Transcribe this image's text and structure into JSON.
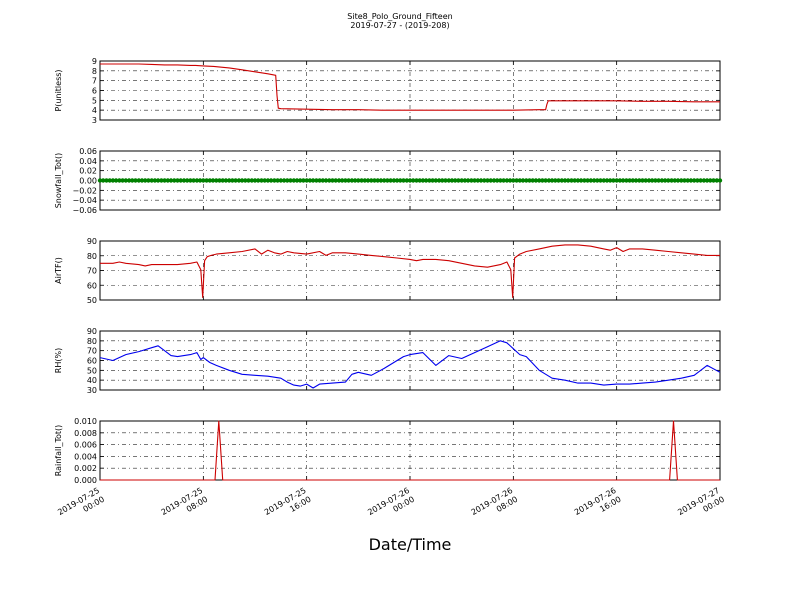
{
  "figure": {
    "title": "Site8_Polo_Ground_Fifteen",
    "subtitle": "2019-07-27 - (2019-208)",
    "xlabel": "Date/Time"
  },
  "chart_data": [
    {
      "type": "line",
      "ylabel": "P(unitless)",
      "ylim": [
        3,
        9
      ],
      "yticks": [
        "3",
        "4",
        "5",
        "6",
        "7",
        "8",
        "9"
      ],
      "grid": true,
      "color": "#cc0000",
      "x": [
        0,
        1,
        2,
        3,
        4,
        5,
        6,
        7,
        7.4,
        8,
        8.8,
        9.2,
        10,
        11,
        12,
        13,
        13.6,
        13.7,
        13.8,
        14,
        16,
        18,
        20,
        22,
        24,
        26,
        28,
        30,
        32,
        34,
        34.5,
        34.6,
        34.7,
        36,
        38,
        40,
        42,
        44,
        46,
        48
      ],
      "values": [
        8.7,
        8.7,
        8.7,
        8.7,
        8.65,
        8.6,
        8.6,
        8.55,
        8.55,
        8.5,
        8.45,
        8.4,
        8.3,
        8.1,
        7.9,
        7.7,
        7.55,
        5.5,
        4.2,
        4.15,
        4.1,
        4.05,
        4.05,
        4.0,
        4.0,
        4.0,
        4.0,
        4.0,
        4.0,
        4.05,
        4.05,
        4.6,
        4.95,
        4.95,
        4.95,
        4.95,
        4.9,
        4.9,
        4.85,
        4.85
      ]
    },
    {
      "type": "scatter",
      "ylabel": "Snowfall_Tot()",
      "ylim": [
        -0.06,
        0.06
      ],
      "yticks": [
        "−0.06",
        "−0.04",
        "−0.02",
        "0.00",
        "0.02",
        "0.04",
        "0.06"
      ],
      "grid": true,
      "color": "#008000",
      "constant_value": 0.0,
      "x_start": 0,
      "x_end": 48,
      "x_step": 0.25
    },
    {
      "type": "line",
      "ylabel": "AirTF()",
      "ylim": [
        45,
        90
      ],
      "yticks": [
        "50",
        "60",
        "70",
        "80",
        "90"
      ],
      "grid": true,
      "color": "#cc0000",
      "x": [
        0,
        1,
        1.5,
        2,
        3,
        3.5,
        4,
        5,
        6,
        7,
        7.5,
        7.8,
        7.95,
        8.1,
        8.3,
        8.6,
        9,
        10,
        11,
        12,
        12.5,
        13,
        13.5,
        14,
        14.5,
        15,
        16,
        17,
        17.5,
        18,
        19,
        20,
        21,
        22,
        23,
        24,
        24.5,
        25,
        26,
        27,
        28,
        29,
        30,
        31,
        31.5,
        31.8,
        31.95,
        32.1,
        32.5,
        33,
        34,
        35,
        36,
        37,
        38,
        38.5,
        39,
        39.5,
        40,
        40.5,
        41,
        42,
        43,
        44,
        45,
        46,
        47,
        48
      ],
      "values": [
        73,
        73,
        74,
        73,
        72,
        71,
        72,
        72,
        72,
        73,
        74,
        68,
        47,
        75,
        78,
        79,
        80,
        81,
        82,
        84,
        80,
        83,
        81,
        80,
        82,
        81,
        80,
        82,
        79,
        81,
        81,
        80,
        79,
        78,
        77,
        76,
        75,
        76,
        76,
        75,
        73,
        71,
        70,
        72,
        74,
        68,
        47,
        77,
        80,
        82,
        84,
        86,
        87,
        87,
        86,
        85,
        84,
        83,
        85,
        82,
        84,
        84,
        83,
        82,
        81,
        80,
        79,
        79
      ]
    },
    {
      "type": "line",
      "ylabel": "RH(%)",
      "ylim": [
        30,
        90
      ],
      "yticks": [
        "30",
        "40",
        "50",
        "60",
        "70",
        "80",
        "90"
      ],
      "grid": true,
      "color": "#0000ee",
      "x": [
        0,
        1,
        2,
        3,
        4,
        4.5,
        5,
        5.5,
        6,
        7,
        7.5,
        7.8,
        8,
        8.5,
        9,
        10,
        11,
        12,
        13,
        14,
        14.5,
        15,
        15.5,
        16,
        16.5,
        17,
        18,
        19,
        19.5,
        20,
        21,
        22,
        23,
        23.5,
        24,
        25,
        26,
        27,
        28,
        29,
        30,
        31,
        31.5,
        32,
        32.5,
        33,
        34,
        35,
        36,
        37,
        38,
        39,
        40,
        41,
        42,
        43,
        44,
        45,
        46,
        47,
        48
      ],
      "values": [
        63,
        60,
        66,
        69,
        73,
        75,
        70,
        65,
        64,
        66,
        68,
        61,
        63,
        58,
        55,
        50,
        46,
        45,
        44,
        42,
        38,
        35,
        34,
        36,
        32,
        36,
        37,
        38,
        46,
        48,
        45,
        52,
        60,
        64,
        66,
        68,
        55,
        65,
        62,
        68,
        74,
        80,
        78,
        72,
        66,
        64,
        50,
        42,
        40,
        37,
        37,
        35,
        36,
        36,
        37,
        38,
        40,
        42,
        45,
        55,
        48
      ]
    },
    {
      "type": "line",
      "ylabel": "Rainfall_Tot()",
      "ylim": [
        0.0,
        0.01
      ],
      "yticks": [
        "0.000",
        "0.002",
        "0.004",
        "0.006",
        "0.008",
        "0.010"
      ],
      "grid": true,
      "color": "#cc0000",
      "x": [
        0,
        8.9,
        9.2,
        9.5,
        44.1,
        44.4,
        44.7,
        48
      ],
      "values": [
        0,
        0,
        0.01,
        0,
        0,
        0.01,
        0,
        0
      ]
    }
  ],
  "xaxis": {
    "range": [
      0,
      48
    ],
    "tick_positions": [
      0,
      8,
      16,
      24,
      32,
      40,
      48
    ],
    "tick_labels": [
      [
        "2019-07-25",
        "00:00"
      ],
      [
        "2019-07-25",
        "08:00"
      ],
      [
        "2019-07-25",
        "16:00"
      ],
      [
        "2019-07-26",
        "00:00"
      ],
      [
        "2019-07-26",
        "08:00"
      ],
      [
        "2019-07-26",
        "16:00"
      ],
      [
        "2019-07-27",
        "00:00"
      ]
    ]
  }
}
